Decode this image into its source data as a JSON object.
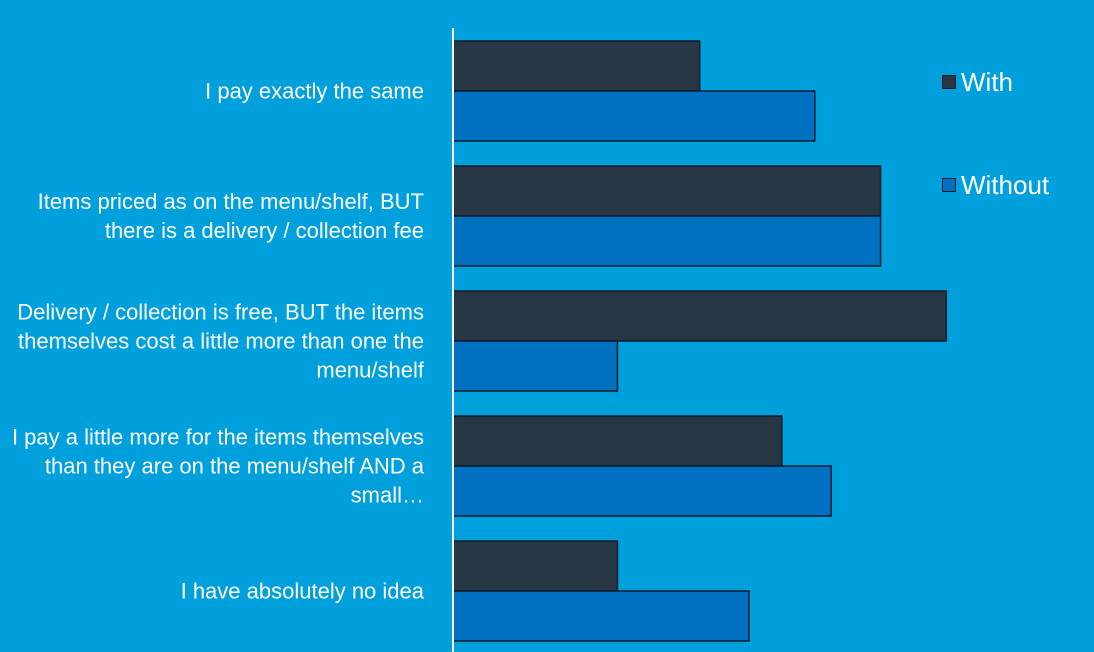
{
  "chart_data": {
    "type": "bar",
    "orientation": "horizontal",
    "categories": [
      "I pay exactly the same",
      "Items priced as on the menu/shelf, BUT there is a delivery / collection fee",
      "Delivery / collection is free, BUT the items themselves cost a little more than one the menu/shelf",
      "I pay a little more for the items themselves than they are on the menu/shelf AND a small…",
      "I have absolutely no idea"
    ],
    "series": [
      {
        "name": "With",
        "values": [
          15,
          26,
          30,
          20,
          10
        ]
      },
      {
        "name": "Without",
        "values": [
          22,
          26,
          10,
          23,
          18
        ]
      }
    ],
    "xlim": [
      0,
      36
    ],
    "grid": false,
    "legend": "right",
    "colors": {
      "With": "#263645",
      "Without": "#0070c0",
      "background": "#00a0dc",
      "axis": "#ffffff",
      "bar_border": "#0d1b2a"
    }
  }
}
